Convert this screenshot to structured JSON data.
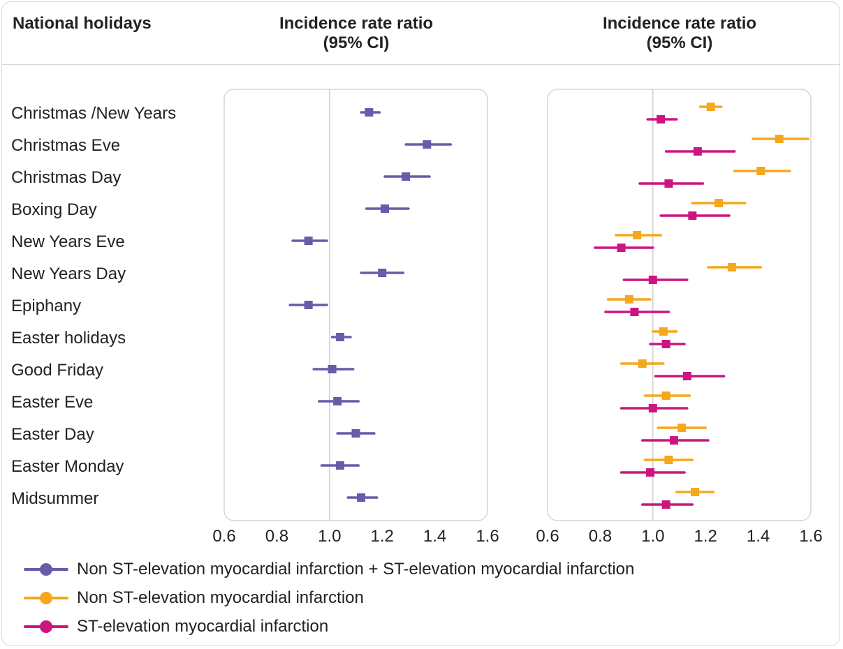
{
  "header": {
    "left_title": "National holidays",
    "panel_title_1_line1": "Incidence rate ratio",
    "panel_title_1_line2": "(95% CI)",
    "panel_title_2_line1": "Incidence rate ratio",
    "panel_title_2_line2": "(95% CI)"
  },
  "legend": [
    {
      "label": "Non ST-elevation myocardial infarction + ST-elevation myocardial infarction",
      "color": "#6a5aaa"
    },
    {
      "label": "Non ST-elevation myocardial infarction",
      "color": "#f5a81c"
    },
    {
      "label": "ST-elevation myocardial infarction",
      "color": "#cc1580"
    }
  ],
  "chart_data": [
    {
      "type": "forest",
      "title": "Incidence rate ratio (95% CI)",
      "xlim": [
        0.6,
        1.6
      ],
      "xticks": [
        "0.6",
        "0.8",
        "1.0",
        "1.2",
        "1.4",
        "1.6"
      ],
      "reference_line": 1.0,
      "categories": [
        "Christmas /New Years",
        "Christmas Eve",
        "Christmas Day",
        "Boxing Day",
        "New Years Eve",
        "New Years Day",
        "Epiphany",
        "Easter holidays",
        "Good Friday",
        "Easter Eve",
        "Easter Day",
        "Easter Monday",
        "Midsummer"
      ],
      "series": [
        {
          "name": "Non ST-elevation myocardial infarction + ST-elevation myocardial infarction",
          "color": "#6a5aaa",
          "estimate": [
            1.15,
            1.37,
            1.29,
            1.21,
            0.92,
            1.2,
            0.92,
            1.04,
            1.01,
            1.03,
            1.1,
            1.04,
            1.12
          ],
          "lower": [
            1.12,
            1.29,
            1.21,
            1.14,
            0.86,
            1.12,
            0.85,
            1.01,
            0.94,
            0.96,
            1.03,
            0.97,
            1.07
          ],
          "upper": [
            1.19,
            1.46,
            1.38,
            1.3,
            0.99,
            1.28,
            0.99,
            1.08,
            1.09,
            1.11,
            1.17,
            1.11,
            1.18
          ]
        }
      ]
    },
    {
      "type": "forest",
      "title": "Incidence rate ratio (95% CI)",
      "xlim": [
        0.6,
        1.6
      ],
      "xticks": [
        "0.6",
        "0.8",
        "1.0",
        "1.2",
        "1.4",
        "1.6"
      ],
      "reference_line": 1.0,
      "categories": [
        "Christmas /New Years",
        "Christmas Eve",
        "Christmas Day",
        "Boxing Day",
        "New Years Eve",
        "New Years Day",
        "Epiphany",
        "Easter holidays",
        "Good Friday",
        "Easter Eve",
        "Easter Day",
        "Easter Monday",
        "Midsummer"
      ],
      "series": [
        {
          "name": "Non ST-elevation myocardial infarction",
          "color": "#f5a81c",
          "estimate": [
            1.22,
            1.48,
            1.41,
            1.25,
            0.94,
            1.3,
            0.91,
            1.04,
            0.96,
            1.05,
            1.11,
            1.06,
            1.16
          ],
          "lower": [
            1.18,
            1.38,
            1.31,
            1.15,
            0.86,
            1.21,
            0.83,
            1.0,
            0.88,
            0.97,
            1.02,
            0.97,
            1.09
          ],
          "upper": [
            1.26,
            1.59,
            1.52,
            1.35,
            1.03,
            1.41,
            0.99,
            1.09,
            1.04,
            1.14,
            1.2,
            1.15,
            1.23
          ]
        },
        {
          "name": "ST-elevation myocardial infarction",
          "color": "#cc1580",
          "estimate": [
            1.03,
            1.17,
            1.06,
            1.15,
            0.88,
            1.0,
            0.93,
            1.05,
            1.13,
            1.0,
            1.08,
            0.99,
            1.05
          ],
          "lower": [
            0.98,
            1.05,
            0.95,
            1.03,
            0.78,
            0.89,
            0.82,
            0.99,
            1.01,
            0.88,
            0.96,
            0.88,
            0.96
          ],
          "upper": [
            1.09,
            1.31,
            1.19,
            1.29,
            1.0,
            1.13,
            1.06,
            1.12,
            1.27,
            1.13,
            1.21,
            1.12,
            1.15
          ]
        }
      ]
    }
  ]
}
